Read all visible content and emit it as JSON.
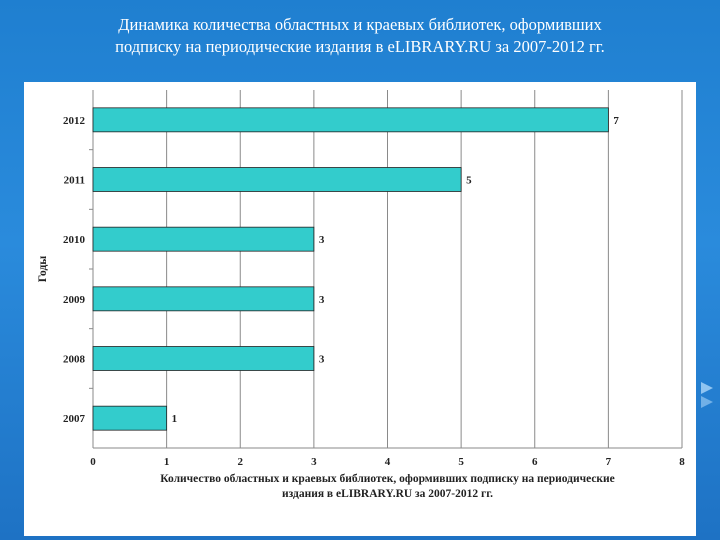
{
  "title_line1": "Динамика количества областных и краевых библиотек, оформивших",
  "title_line2": "подписку на периодические издания в eLIBRARY.RU за 2007-2012 гг.",
  "colors": {
    "background": "#2a8bdc",
    "bar": "#33cccc",
    "bar_border": "#222222",
    "title_text": "#ffffff"
  },
  "chart_data": {
    "type": "bar",
    "orientation": "horizontal",
    "categories": [
      "2012",
      "2011",
      "2010",
      "2009",
      "2008",
      "2007"
    ],
    "values": [
      7,
      5,
      3,
      3,
      3,
      1
    ],
    "data_labels": [
      "7",
      "5",
      "3",
      "3",
      "3",
      "1"
    ],
    "ylabel": "Годы",
    "xlabel_line1": "Количество областных и краевых библиотек, оформивших подписку на периодические",
    "xlabel_line2": "издания в eLIBRARY.RU за 2007-2012 гг.",
    "xlim": [
      0,
      8
    ],
    "xticks": [
      0,
      1,
      2,
      3,
      4,
      5,
      6,
      7,
      8
    ],
    "grid": "vertical",
    "legend": "none"
  }
}
